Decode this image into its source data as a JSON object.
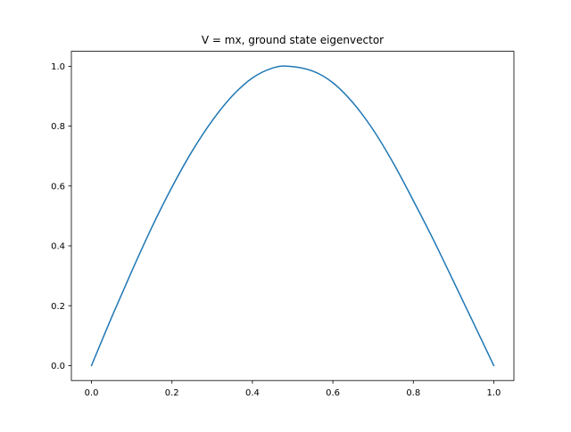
{
  "chart_data": {
    "type": "line",
    "title": "V = mx, ground state eigenvector",
    "xlabel": "",
    "ylabel": "",
    "xlim": [
      -0.05,
      1.05
    ],
    "ylim": [
      -0.05,
      1.05
    ],
    "xticks": [
      0.0,
      0.2,
      0.4,
      0.6,
      0.8,
      1.0
    ],
    "xtick_labels": [
      "0.0",
      "0.2",
      "0.4",
      "0.6",
      "0.8",
      "1.0"
    ],
    "yticks": [
      0.0,
      0.2,
      0.4,
      0.6,
      0.8,
      1.0
    ],
    "ytick_labels": [
      "0.0",
      "0.2",
      "0.4",
      "0.6",
      "0.8",
      "1.0"
    ],
    "grid": false,
    "legend": "none",
    "series": [
      {
        "color": "#1f77b4",
        "x": [
          0.0,
          0.05,
          0.1,
          0.15,
          0.2,
          0.25,
          0.3,
          0.35,
          0.4,
          0.45,
          0.49,
          0.55,
          0.6,
          0.65,
          0.7,
          0.75,
          0.8,
          0.85,
          0.9,
          0.95,
          1.0
        ],
        "y": [
          0.0,
          0.161,
          0.315,
          0.462,
          0.596,
          0.716,
          0.818,
          0.901,
          0.961,
          0.994,
          1.0,
          0.984,
          0.945,
          0.878,
          0.788,
          0.677,
          0.551,
          0.42,
          0.281,
          0.141,
          0.0
        ]
      }
    ]
  }
}
